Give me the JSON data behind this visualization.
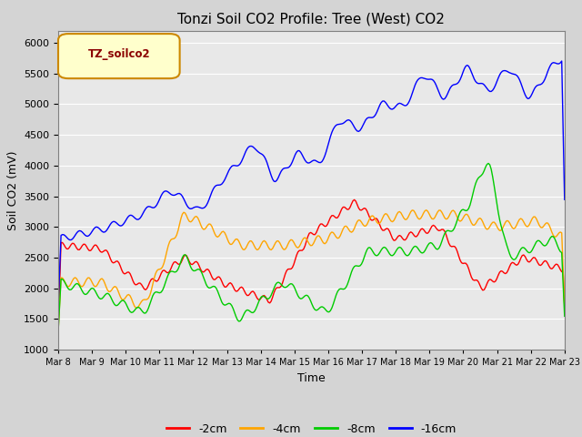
{
  "title": "Tonzi Soil CO2 Profile: Tree (West) CO2",
  "ylabel": "Soil CO2 (mV)",
  "xlabel": "Time",
  "legend_label": "TZ_soilco2",
  "ylim": [
    1000,
    6200
  ],
  "yticks": [
    1000,
    1500,
    2000,
    2500,
    3000,
    3500,
    4000,
    4500,
    5000,
    5500,
    6000
  ],
  "xtick_labels": [
    "Mar 8",
    "Mar 9",
    "Mar 10",
    "Mar 11",
    "Mar 12",
    "Mar 13",
    "Mar 14",
    "Mar 15",
    "Mar 16",
    "Mar 17",
    "Mar 18",
    "Mar 19",
    "Mar 20",
    "Mar 21",
    "Mar 22",
    "Mar 23"
  ],
  "series_labels": [
    "-2cm",
    "-4cm",
    "-8cm",
    "-16cm"
  ],
  "series_colors": [
    "#ff0000",
    "#ffa500",
    "#00cc00",
    "#0000ff"
  ],
  "background_color": "#d4d4d4",
  "plot_background": "#e8e8e8",
  "title_fontsize": 11,
  "axis_fontsize": 9,
  "legend_box_color": "#ffffcc",
  "legend_box_edge": "#cc8800"
}
